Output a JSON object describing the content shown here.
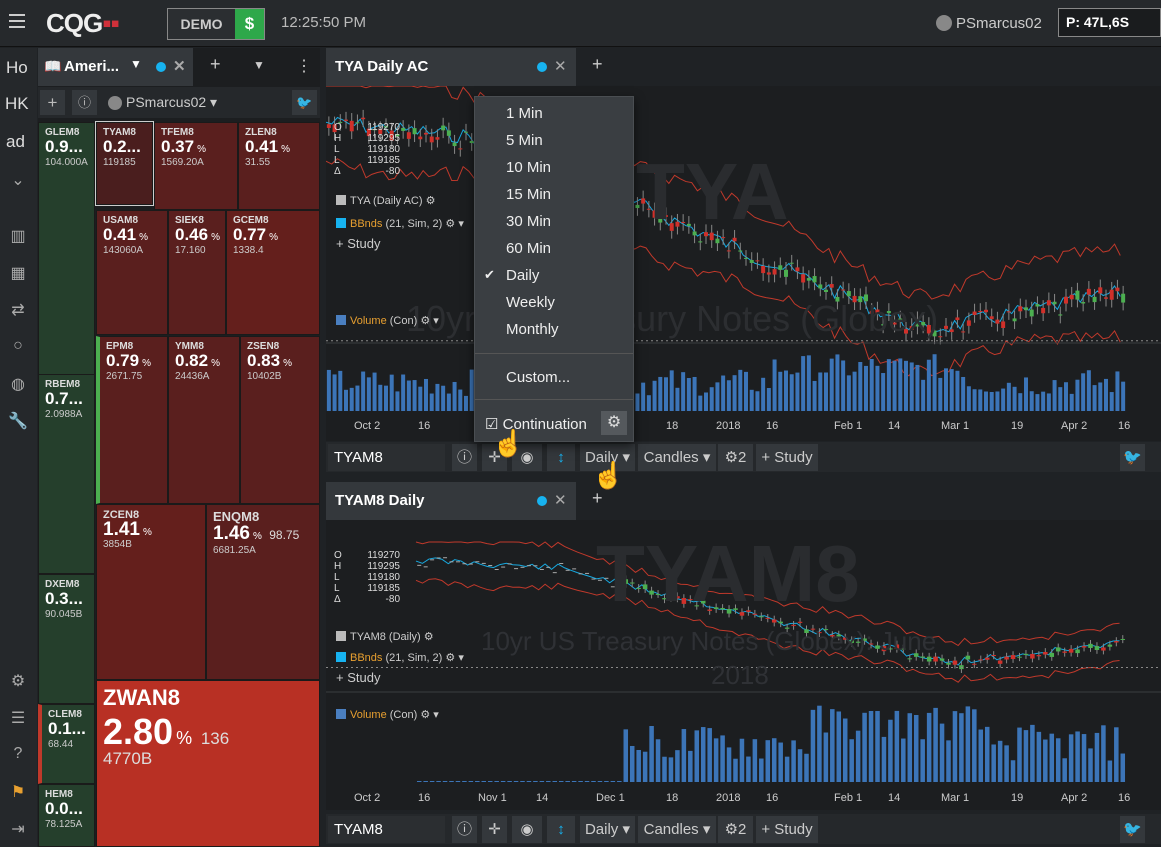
{
  "topbar": {
    "logo": "CQG",
    "demo_label": "DEMO",
    "dollar": "$",
    "clock": "12:25:50 PM",
    "user": "PSmarcus02",
    "p_label": "P:",
    "p_value": "47L,6S"
  },
  "leftnav": {
    "items": [
      "Ho",
      "HK",
      "ad"
    ]
  },
  "watchlist": {
    "tab_label": "Ameri...",
    "owner": "PSmarcus02",
    "tiles": [
      {
        "sym": "GLEM8",
        "pct": "0.9...",
        "vol": "104.000A"
      },
      {
        "sym": "TYAM8",
        "pct": "0.2...",
        "vol": "119185"
      },
      {
        "sym": "TFEM8",
        "pct": "0.37",
        "vol": "1569.20A"
      },
      {
        "sym": "ZLEN8",
        "pct": "0.41",
        "vol": "31.55"
      },
      {
        "sym": "USAM8",
        "pct": "0.41",
        "vol": "143060A"
      },
      {
        "sym": "SIEK8",
        "pct": "0.46",
        "vol": "17.160"
      },
      {
        "sym": "GCEM8",
        "pct": "0.77",
        "vol": "1338.4"
      },
      {
        "sym": "RBEM8",
        "pct": "0.7...",
        "vol": "2.0988A"
      },
      {
        "sym": "EPM8",
        "pct": "0.79",
        "vol": "2671.75"
      },
      {
        "sym": "YMM8",
        "pct": "0.82",
        "vol": "24436A"
      },
      {
        "sym": "ZSEN8",
        "pct": "0.83",
        "vol": "10402B"
      },
      {
        "sym": "ZCEN8",
        "pct": "1.41",
        "vol": "3854B"
      },
      {
        "sym": "ENQM8",
        "pct": "1.46",
        "extra": "98.75",
        "vol": "6681.25A"
      },
      {
        "sym": "DXEM8",
        "pct": "0.3...",
        "vol": "90.045B"
      },
      {
        "sym": "CLEM8",
        "pct": "0.1...",
        "vol": "68.44"
      },
      {
        "sym": "HEM8",
        "pct": "0.0...",
        "vol": "78.125A"
      },
      {
        "sym": "ZWAN8",
        "pct": "2.80",
        "extra": "136",
        "vol": "4770B"
      }
    ],
    "pct_sign": "%"
  },
  "chart1": {
    "tab": "TYA Daily AC",
    "ohlc_labels": [
      "O",
      "H",
      "L",
      "L",
      "Δ"
    ],
    "ohlc_values": [
      "119270",
      "119295",
      "119180",
      "119185",
      "-80"
    ],
    "watermark": "TYA",
    "subtitle": "10yr US Treasury Notes (Globex)",
    "legend_price": "TYA (Daily AC)",
    "legend_bb": "BBnds",
    "legend_bb_params": "(21, Sim, 2)",
    "study": "+ Study",
    "legend_vol": "Volume",
    "legend_vol_params": "(Con)",
    "xlabels": [
      "Oct 2",
      "16",
      "18",
      "2018",
      "16",
      "Feb 1",
      "14",
      "Mar 1",
      "19",
      "Apr 2",
      "16"
    ],
    "symbol": "TYAM8",
    "interval": "Daily",
    "chart_type": "Candles",
    "count": "2",
    "study_btn": "Study"
  },
  "chart2": {
    "tab": "TYAM8 Daily",
    "ohlc_labels": [
      "O",
      "H",
      "L",
      "L",
      "Δ"
    ],
    "ohlc_values": [
      "119270",
      "119295",
      "119180",
      "119185",
      "-80"
    ],
    "watermark": "TYAM8",
    "subtitle": "10yr US Treasury Notes (Globex): June",
    "subtitle2": "2018",
    "legend_price": "TYAM8 (Daily)",
    "legend_bb": "BBnds",
    "legend_bb_params": "(21, Sim, 2)",
    "study": "+ Study",
    "legend_vol": "Volume",
    "legend_vol_params": "(Con)",
    "xlabels": [
      "Oct 2",
      "16",
      "Nov 1",
      "14",
      "Dec 1",
      "18",
      "2018",
      "16",
      "Feb 1",
      "14",
      "Mar 1",
      "19",
      "Apr 2",
      "16"
    ],
    "symbol": "TYAM8",
    "interval": "Daily",
    "chart_type": "Candles",
    "count": "2",
    "study_btn": "Study"
  },
  "menu": {
    "items": [
      "1 Min",
      "5 Min",
      "10 Min",
      "15 Min",
      "30 Min",
      "60 Min",
      "Daily",
      "Weekly",
      "Monthly"
    ],
    "selected": "Daily",
    "custom": "Custom...",
    "continuation": "Continuation"
  },
  "colors": {
    "accent_blue": "#17b3f0",
    "green": "#2ea84a",
    "red": "#c0392b"
  }
}
